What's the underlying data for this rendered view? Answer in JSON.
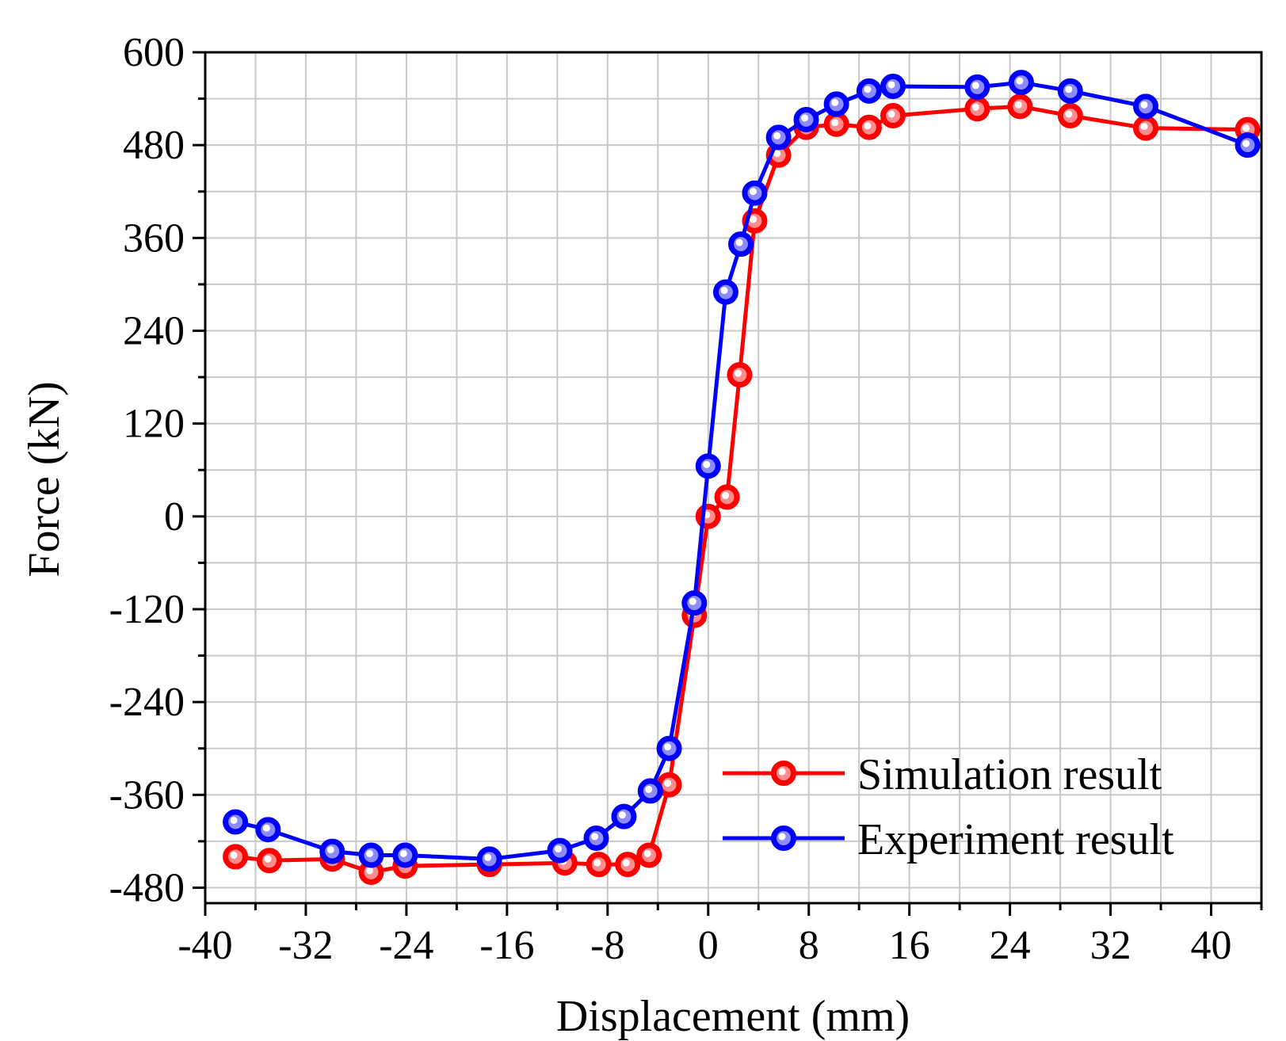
{
  "chart_data": {
    "type": "line",
    "xlabel": "Displacement (mm)",
    "ylabel": "Force (kN)",
    "xlim": [
      -40,
      44
    ],
    "ylim": [
      -500,
      600
    ],
    "xticks": [
      -40,
      -32,
      -24,
      -16,
      -8,
      0,
      8,
      16,
      24,
      32,
      40
    ],
    "yticks": [
      -480,
      -360,
      -240,
      -120,
      0,
      120,
      240,
      360,
      480,
      600
    ],
    "xtick_labels": [
      "-40",
      "-32",
      "-24",
      "-16",
      "-8",
      "0",
      "8",
      "16",
      "24",
      "32",
      "40"
    ],
    "ytick_labels": [
      "-480",
      "-360",
      "-240",
      "-120",
      "0",
      "120",
      "240",
      "360",
      "480",
      "600"
    ],
    "grid": true,
    "legend_position": "bottom-right",
    "series": [
      {
        "name": "Simulation result",
        "color": "#ff0000",
        "x": [
          -37.6,
          -34.9,
          -29.9,
          -26.8,
          -24.1,
          -17.4,
          -11.4,
          -8.7,
          -6.4,
          -4.7,
          -3.1,
          -1.1,
          0,
          1.5,
          2.5,
          3.7,
          5.6,
          7.8,
          10.2,
          12.8,
          14.7,
          21.4,
          24.8,
          28.8,
          34.8,
          42.9
        ],
        "y": [
          -440,
          -445,
          -443,
          -460,
          -452,
          -450,
          -448,
          -450,
          -450,
          -438,
          -347,
          -128,
          0,
          25,
          183,
          382,
          467,
          503,
          507,
          503,
          518,
          527,
          530,
          518,
          502,
          500
        ]
      },
      {
        "name": "Experiment result",
        "color": "#0000ff",
        "x": [
          -37.6,
          -35.0,
          -29.9,
          -26.8,
          -24.1,
          -17.4,
          -11.8,
          -8.9,
          -6.7,
          -4.6,
          -3.1,
          -1.1,
          0,
          1.4,
          2.6,
          3.7,
          5.6,
          7.8,
          10.2,
          12.8,
          14.7,
          21.4,
          24.9,
          28.8,
          34.8,
          42.9
        ],
        "y": [
          -395,
          -405,
          -433,
          -438,
          -438,
          -443,
          -432,
          -416,
          -388,
          -355,
          -300,
          -112,
          65,
          290,
          352,
          418,
          490,
          513,
          533,
          550,
          556,
          555,
          561,
          550,
          530,
          480
        ]
      }
    ]
  }
}
